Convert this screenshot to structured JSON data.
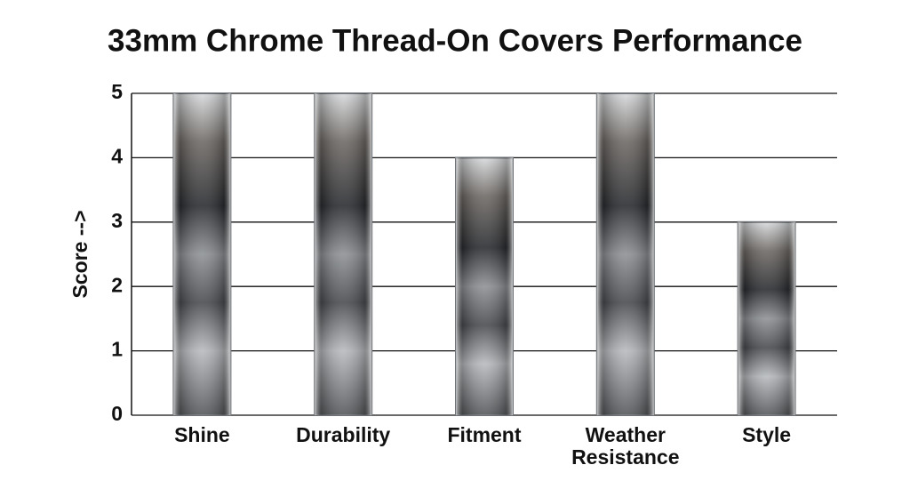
{
  "chart_data": {
    "type": "bar",
    "title": "33mm Chrome Thread-On Covers Performance",
    "y_label": "Score -->",
    "categories": [
      "Shine",
      "Durability",
      "Fitment",
      "Weather Resistance",
      "Style"
    ],
    "values": [
      5,
      5,
      4,
      5,
      3
    ],
    "color": "#6e7276",
    "ylim": [
      0,
      5
    ],
    "yticks": [
      0,
      1,
      2,
      3,
      4,
      5
    ],
    "grid": true
  }
}
